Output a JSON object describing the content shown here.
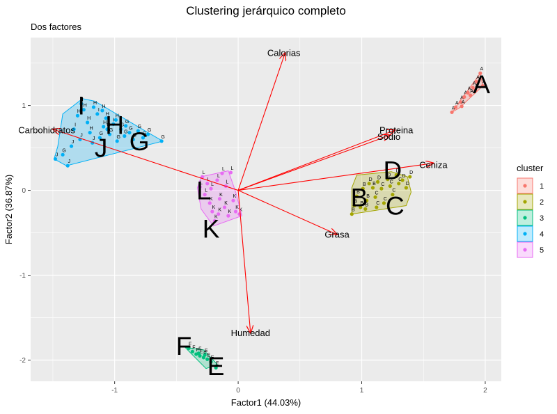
{
  "chart_data": {
    "type": "scatter",
    "title": "Clustering jerárquico completo",
    "subtitle": "Dos factores",
    "xlabel": "Factor1 (44.03%)",
    "ylabel": "Factor2 (36.87%)",
    "xlim": [
      -1.68,
      2.13
    ],
    "ylim": [
      -2.25,
      1.8
    ],
    "x_ticks": [
      -1,
      0,
      1,
      2
    ],
    "x_tick_labels": [
      "-1",
      "0",
      "1",
      "2"
    ],
    "y_ticks": [
      -2,
      -1,
      0,
      1
    ],
    "y_tick_labels": [
      "-2",
      "-1",
      "0",
      "1"
    ],
    "grid": true,
    "legend": {
      "title": "cluster",
      "position": "right",
      "entries": [
        {
          "label": "1",
          "color": "#F8766D"
        },
        {
          "label": "2",
          "color": "#A3A500"
        },
        {
          "label": "3",
          "color": "#00BF7D"
        },
        {
          "label": "4",
          "color": "#00B0F6"
        },
        {
          "label": "5",
          "color": "#E76BF3"
        }
      ]
    },
    "clusters": [
      {
        "name": "1",
        "color": "#F8766D",
        "hull": [
          [
            1.73,
            0.92
          ],
          [
            1.96,
            1.38
          ],
          [
            1.98,
            1.23
          ],
          [
            1.79,
            0.97
          ]
        ],
        "points": [
          {
            "x": 1.73,
            "y": 0.92,
            "label": "A"
          },
          {
            "x": 1.76,
            "y": 0.98,
            "label": "A"
          },
          {
            "x": 1.8,
            "y": 1.04,
            "label": "A"
          },
          {
            "x": 1.83,
            "y": 1.1,
            "label": "A"
          },
          {
            "x": 1.86,
            "y": 1.15,
            "label": "A"
          },
          {
            "x": 1.9,
            "y": 1.21,
            "label": "A"
          },
          {
            "x": 1.93,
            "y": 1.28,
            "label": "A"
          },
          {
            "x": 1.96,
            "y": 1.38,
            "label": "A"
          },
          {
            "x": 1.98,
            "y": 1.23,
            "label": "A"
          },
          {
            "x": 1.88,
            "y": 1.12,
            "label": "A"
          },
          {
            "x": 1.81,
            "y": 0.99,
            "label": "A"
          },
          {
            "x": 1.92,
            "y": 1.18,
            "label": "A"
          }
        ]
      },
      {
        "name": "2",
        "color": "#A3A500",
        "hull": [
          [
            0.92,
            -0.28
          ],
          [
            1.36,
            -0.18
          ],
          [
            1.4,
            -0.02
          ],
          [
            1.37,
            0.16
          ],
          [
            1.24,
            0.22
          ],
          [
            0.96,
            0.18
          ],
          [
            0.92,
            0.03
          ]
        ],
        "points": [
          {
            "x": 0.92,
            "y": -0.28,
            "label": "B"
          },
          {
            "x": 0.94,
            "y": -0.18,
            "label": "B"
          },
          {
            "x": 0.96,
            "y": -0.07,
            "label": "B"
          },
          {
            "x": 0.99,
            "y": -0.2,
            "label": "B"
          },
          {
            "x": 1.01,
            "y": 0.02,
            "label": "B"
          },
          {
            "x": 1.04,
            "y": -0.12,
            "label": "B"
          },
          {
            "x": 1.06,
            "y": 0.08,
            "label": "D"
          },
          {
            "x": 1.09,
            "y": 0.03,
            "label": "B"
          },
          {
            "x": 1.11,
            "y": -0.08,
            "label": "C"
          },
          {
            "x": 1.13,
            "y": 0.1,
            "label": "D"
          },
          {
            "x": 1.16,
            "y": 0.02,
            "label": "C"
          },
          {
            "x": 1.18,
            "y": -0.15,
            "label": "C"
          },
          {
            "x": 1.21,
            "y": 0.13,
            "label": "D"
          },
          {
            "x": 1.23,
            "y": 0.05,
            "label": "C"
          },
          {
            "x": 1.25,
            "y": -0.05,
            "label": "C"
          },
          {
            "x": 1.28,
            "y": 0.18,
            "label": "D"
          },
          {
            "x": 1.3,
            "y": 0.08,
            "label": "C"
          },
          {
            "x": 1.33,
            "y": 0.12,
            "label": "D"
          },
          {
            "x": 1.36,
            "y": 0.03,
            "label": "D"
          },
          {
            "x": 1.39,
            "y": 0.16,
            "label": "D"
          },
          {
            "x": 1.12,
            "y": -0.2,
            "label": "C"
          },
          {
            "x": 1.03,
            "y": -0.22,
            "label": "B"
          }
        ]
      },
      {
        "name": "3",
        "color": "#00BF7D",
        "hull": [
          [
            -0.43,
            -1.85
          ],
          [
            -0.26,
            -2.1
          ],
          [
            -0.17,
            -2.05
          ],
          [
            -0.28,
            -1.88
          ]
        ],
        "points": [
          {
            "x": -0.4,
            "y": -1.86,
            "label": "F"
          },
          {
            "x": -0.37,
            "y": -1.9,
            "label": "F"
          },
          {
            "x": -0.34,
            "y": -1.93,
            "label": "F"
          },
          {
            "x": -0.31,
            "y": -1.95,
            "label": "E"
          },
          {
            "x": -0.28,
            "y": -1.97,
            "label": "E"
          },
          {
            "x": -0.25,
            "y": -1.99,
            "label": "E"
          },
          {
            "x": -0.22,
            "y": -2.02,
            "label": "E"
          },
          {
            "x": -0.18,
            "y": -2.09,
            "label": "E"
          },
          {
            "x": -0.32,
            "y": -1.92,
            "label": "F"
          },
          {
            "x": -0.27,
            "y": -1.94,
            "label": "E"
          }
        ]
      },
      {
        "name": "4",
        "color": "#00B0F6",
        "hull": [
          [
            -1.49,
            0.37
          ],
          [
            -1.39,
            0.29
          ],
          [
            -0.61,
            0.58
          ],
          [
            -0.73,
            0.68
          ],
          [
            -1.16,
            1.05
          ],
          [
            -1.26,
            1.08
          ],
          [
            -1.42,
            0.9
          ],
          [
            -1.46,
            0.52
          ]
        ],
        "points": [
          {
            "x": -1.48,
            "y": 0.37,
            "label": "J"
          },
          {
            "x": -1.42,
            "y": 0.42,
            "label": "G"
          },
          {
            "x": -1.38,
            "y": 0.29,
            "label": "J"
          },
          {
            "x": -1.35,
            "y": 0.52,
            "label": "J"
          },
          {
            "x": -1.33,
            "y": 0.72,
            "label": "I"
          },
          {
            "x": -1.3,
            "y": 0.88,
            "label": "H"
          },
          {
            "x": -1.27,
            "y": 1.02,
            "label": "I"
          },
          {
            "x": -1.25,
            "y": 0.95,
            "label": "H"
          },
          {
            "x": -1.22,
            "y": 0.8,
            "label": "H"
          },
          {
            "x": -1.2,
            "y": 0.68,
            "label": "H"
          },
          {
            "x": -1.17,
            "y": 0.98,
            "label": "H"
          },
          {
            "x": -1.14,
            "y": 0.9,
            "label": "I"
          },
          {
            "x": -1.12,
            "y": 0.62,
            "label": "G"
          },
          {
            "x": -1.09,
            "y": 0.75,
            "label": "H"
          },
          {
            "x": -1.07,
            "y": 0.85,
            "label": "H"
          },
          {
            "x": -1.04,
            "y": 0.66,
            "label": "G"
          },
          {
            "x": -1.01,
            "y": 0.78,
            "label": "H"
          },
          {
            "x": -0.98,
            "y": 0.58,
            "label": "G"
          },
          {
            "x": -0.95,
            "y": 0.72,
            "label": "G"
          },
          {
            "x": -0.92,
            "y": 0.64,
            "label": "G"
          },
          {
            "x": -0.88,
            "y": 0.68,
            "label": "G"
          },
          {
            "x": -0.85,
            "y": 0.6,
            "label": "G"
          },
          {
            "x": -0.81,
            "y": 0.7,
            "label": "G"
          },
          {
            "x": -0.77,
            "y": 0.62,
            "label": "G"
          },
          {
            "x": -0.73,
            "y": 0.66,
            "label": "G"
          },
          {
            "x": -0.62,
            "y": 0.58,
            "label": "G"
          },
          {
            "x": -1.28,
            "y": 0.6,
            "label": "J"
          },
          {
            "x": -1.18,
            "y": 0.56,
            "label": "J"
          },
          {
            "x": -1.1,
            "y": 0.94,
            "label": "H"
          },
          {
            "x": -0.99,
            "y": 0.83,
            "label": "H"
          },
          {
            "x": -0.91,
            "y": 0.76,
            "label": "G"
          },
          {
            "x": -1.06,
            "y": 0.72,
            "label": "G"
          }
        ]
      },
      {
        "name": "5",
        "color": "#E76BF3",
        "hull": [
          [
            -0.3,
            0.16
          ],
          [
            -0.08,
            0.23
          ],
          [
            -0.02,
            -0.02
          ],
          [
            0.03,
            -0.3
          ],
          [
            -0.2,
            -0.42
          ],
          [
            -0.3,
            -0.22
          ],
          [
            -0.33,
            0.03
          ]
        ],
        "points": [
          {
            "x": -0.31,
            "y": 0.04,
            "label": "L"
          },
          {
            "x": -0.29,
            "y": 0.16,
            "label": "L"
          },
          {
            "x": -0.27,
            "y": -0.05,
            "label": "L"
          },
          {
            "x": -0.25,
            "y": 0.08,
            "label": "L"
          },
          {
            "x": -0.23,
            "y": -0.15,
            "label": "K"
          },
          {
            "x": -0.21,
            "y": -0.25,
            "label": "K"
          },
          {
            "x": -0.19,
            "y": -0.36,
            "label": "K"
          },
          {
            "x": -0.17,
            "y": 0.12,
            "label": "L"
          },
          {
            "x": -0.15,
            "y": -0.1,
            "label": "K"
          },
          {
            "x": -0.13,
            "y": 0.2,
            "label": "L"
          },
          {
            "x": -0.11,
            "y": -0.2,
            "label": "K"
          },
          {
            "x": -0.1,
            "y": 0.05,
            "label": "L"
          },
          {
            "x": -0.08,
            "y": -0.3,
            "label": "K"
          },
          {
            "x": -0.06,
            "y": 0.21,
            "label": "L"
          },
          {
            "x": -0.04,
            "y": -0.12,
            "label": "K"
          },
          {
            "x": -0.02,
            "y": -0.25,
            "label": "K"
          },
          {
            "x": 0.01,
            "y": -0.28,
            "label": "K"
          },
          {
            "x": -0.16,
            "y": -0.28,
            "label": "K"
          },
          {
            "x": -0.22,
            "y": 0.02,
            "label": "L"
          }
        ]
      }
    ],
    "cluster_labels": [
      {
        "text": "A",
        "x": 1.97,
        "y": 1.25
      },
      {
        "text": "B",
        "x": 0.98,
        "y": -0.08
      },
      {
        "text": "C",
        "x": 1.27,
        "y": -0.18
      },
      {
        "text": "D",
        "x": 1.25,
        "y": 0.24
      },
      {
        "text": "E",
        "x": -0.18,
        "y": -2.07
      },
      {
        "text": "F",
        "x": -0.44,
        "y": -1.83
      },
      {
        "text": "G",
        "x": -0.8,
        "y": 0.58
      },
      {
        "text": "H",
        "x": -1.0,
        "y": 0.77
      },
      {
        "text": "I",
        "x": -1.27,
        "y": 1.0
      },
      {
        "text": "J",
        "x": -1.11,
        "y": 0.5
      },
      {
        "text": "K",
        "x": -0.22,
        "y": -0.45
      },
      {
        "text": "L",
        "x": -0.28,
        "y": 0.0
      }
    ],
    "loadings": [
      {
        "name": "Calorias",
        "x": 0.38,
        "y": 1.62
      },
      {
        "name": "Proteina",
        "x": 1.27,
        "y": 0.71
      },
      {
        "name": "Sodio",
        "x": 1.23,
        "y": 0.65
      },
      {
        "name": "Ceniza",
        "x": 1.58,
        "y": 0.32
      },
      {
        "name": "Grasa",
        "x": 0.8,
        "y": -0.52
      },
      {
        "name": "Humedad",
        "x": 0.1,
        "y": -1.68
      },
      {
        "name": "Carbohidratos",
        "x": -1.5,
        "y": 0.72
      }
    ],
    "loading_labels": [
      {
        "name": "Calorias",
        "x": 0.37,
        "y": 1.62
      },
      {
        "name": "Proteina",
        "x": 1.28,
        "y": 0.71
      },
      {
        "name": "Sodio",
        "x": 1.22,
        "y": 0.63
      },
      {
        "name": "Ceniza",
        "x": 1.58,
        "y": 0.3
      },
      {
        "name": "Grasa",
        "x": 0.8,
        "y": -0.52
      },
      {
        "name": "Humedad",
        "x": 0.1,
        "y": -1.68
      },
      {
        "name": "Carbohidratos",
        "x": -1.55,
        "y": 0.71
      }
    ]
  }
}
